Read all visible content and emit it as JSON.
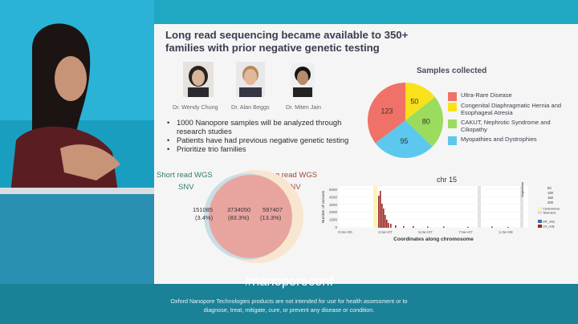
{
  "slide": {
    "title": "Long read sequencing became available to 350+\nfamilies with prior negative genetic testing",
    "people": [
      {
        "name": "Dr. Wendy Chung"
      },
      {
        "name": "Dr. Alan Beggs"
      },
      {
        "name": "Dr. Miten Jain"
      }
    ],
    "bullets": [
      "1000 Nanopore samples will be analyzed through research studies",
      "Patients have had previous negative genetic testing",
      "Prioritize trio families"
    ],
    "pie": {
      "title": "Samples collected",
      "slices": [
        {
          "label": "Ultra-Rare Disease",
          "value": 123,
          "color": "#f07167"
        },
        {
          "label": "Congenital Diaphragmatic Hernia and Esophageal Atresia",
          "value": 50,
          "color": "#f9e21b"
        },
        {
          "label": "CAKUT, Nephrotic Syndrome and Ciliopathy",
          "value": 80,
          "color": "#9bdc5e"
        },
        {
          "label": "Myopathies and Dystrophies",
          "value": 95,
          "color": "#5cc8ee"
        }
      ]
    },
    "venn": {
      "left_title": "Short read WGS",
      "left_sub": "SNV",
      "right_title": "Long read WGS",
      "right_sub": "SNV",
      "left_only": "151085",
      "left_only_pct": "(3.4%)",
      "both": "3734050",
      "both_pct": "(83.3%)",
      "right_only": "597407",
      "right_only_pct": "(13.3%)",
      "left_color": "#2e7d6e",
      "right_color": "#a0453c"
    },
    "chrom_chart": {
      "title": "chr 15",
      "xlabel": "Coordinates along chromosome",
      "ylabel": "Number of variants",
      "yticks": [
        "5000",
        "4000",
        "3000",
        "2000",
        "1000",
        "0"
      ],
      "xticks": [
        "0.0e+00",
        "2.5e+07",
        "5.0e+07",
        "7.5e+07",
        "1.0e+08"
      ],
      "legend_seg_label": "Segmental duplication",
      "legend_seg_values": [
        "50",
        "100",
        "150",
        "200"
      ],
      "legend_centromere": "Centromere",
      "legend_telomere": "Telomere",
      "legend_sr": "SR_only",
      "legend_lr": "LR_only"
    }
  },
  "footer": {
    "hashtag": "#nanoporeconf",
    "disclaimer_1": "Oxford Nanopore Technologies products are not intended for use for health assessment or to",
    "disclaimer_2": "diagnose, treat, mitigate, cure, or prevent any disease or condition."
  }
}
